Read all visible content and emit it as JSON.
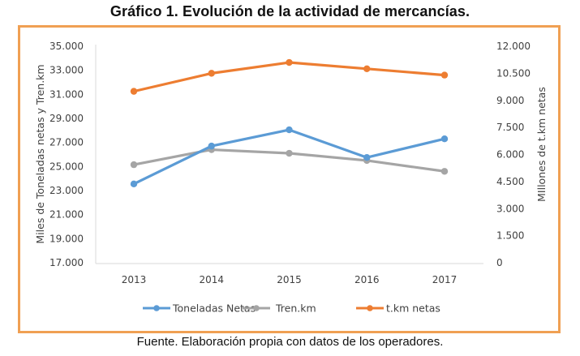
{
  "title": "Gráfico 1. Evolución de la actividad de mercancías.",
  "footer": "Fuente. Elaboración propia con datos de los operadores.",
  "colors": {
    "frame": "#f0a053",
    "toneladas": "#5b9bd5",
    "tren": "#a5a5a5",
    "tkm": "#ed7d31",
    "axis": "#d9d9d9"
  },
  "chart_data": {
    "type": "line",
    "title": "Gráfico 1. Evolución de la actividad de mercancías.",
    "categories": [
      "2013",
      "2014",
      "2015",
      "2016",
      "2017"
    ],
    "ylabel": "Miles de Toneladas netas y Tren.km",
    "y2label": "MIllones de t.km  netas",
    "ylim": [
      17000,
      35000
    ],
    "y2lim": [
      0,
      12000
    ],
    "yticks": [
      "35.000",
      "33.000",
      "31.000",
      "29.000",
      "27.000",
      "25.000",
      "23.000",
      "21.000",
      "19.000",
      "17.000"
    ],
    "y2ticks": [
      "12.000",
      "10.500",
      "9.000",
      "7.500",
      "6.000",
      "4.500",
      "3.000",
      "1.500",
      "0"
    ],
    "grid": false,
    "legend_position": "bottom",
    "series": [
      {
        "name": "Toneladas Netas",
        "axis": "left",
        "color": "#5b9bd5",
        "values": [
          23550,
          26700,
          28050,
          25750,
          27300
        ]
      },
      {
        "name": "Tren.km",
        "axis": "left",
        "color": "#a5a5a5",
        "values": [
          25150,
          26400,
          26100,
          25500,
          24600
        ]
      },
      {
        "name": "t.km netas",
        "axis": "right",
        "color": "#ed7d31",
        "values": [
          9500,
          10500,
          11100,
          10750,
          10400
        ]
      }
    ]
  }
}
